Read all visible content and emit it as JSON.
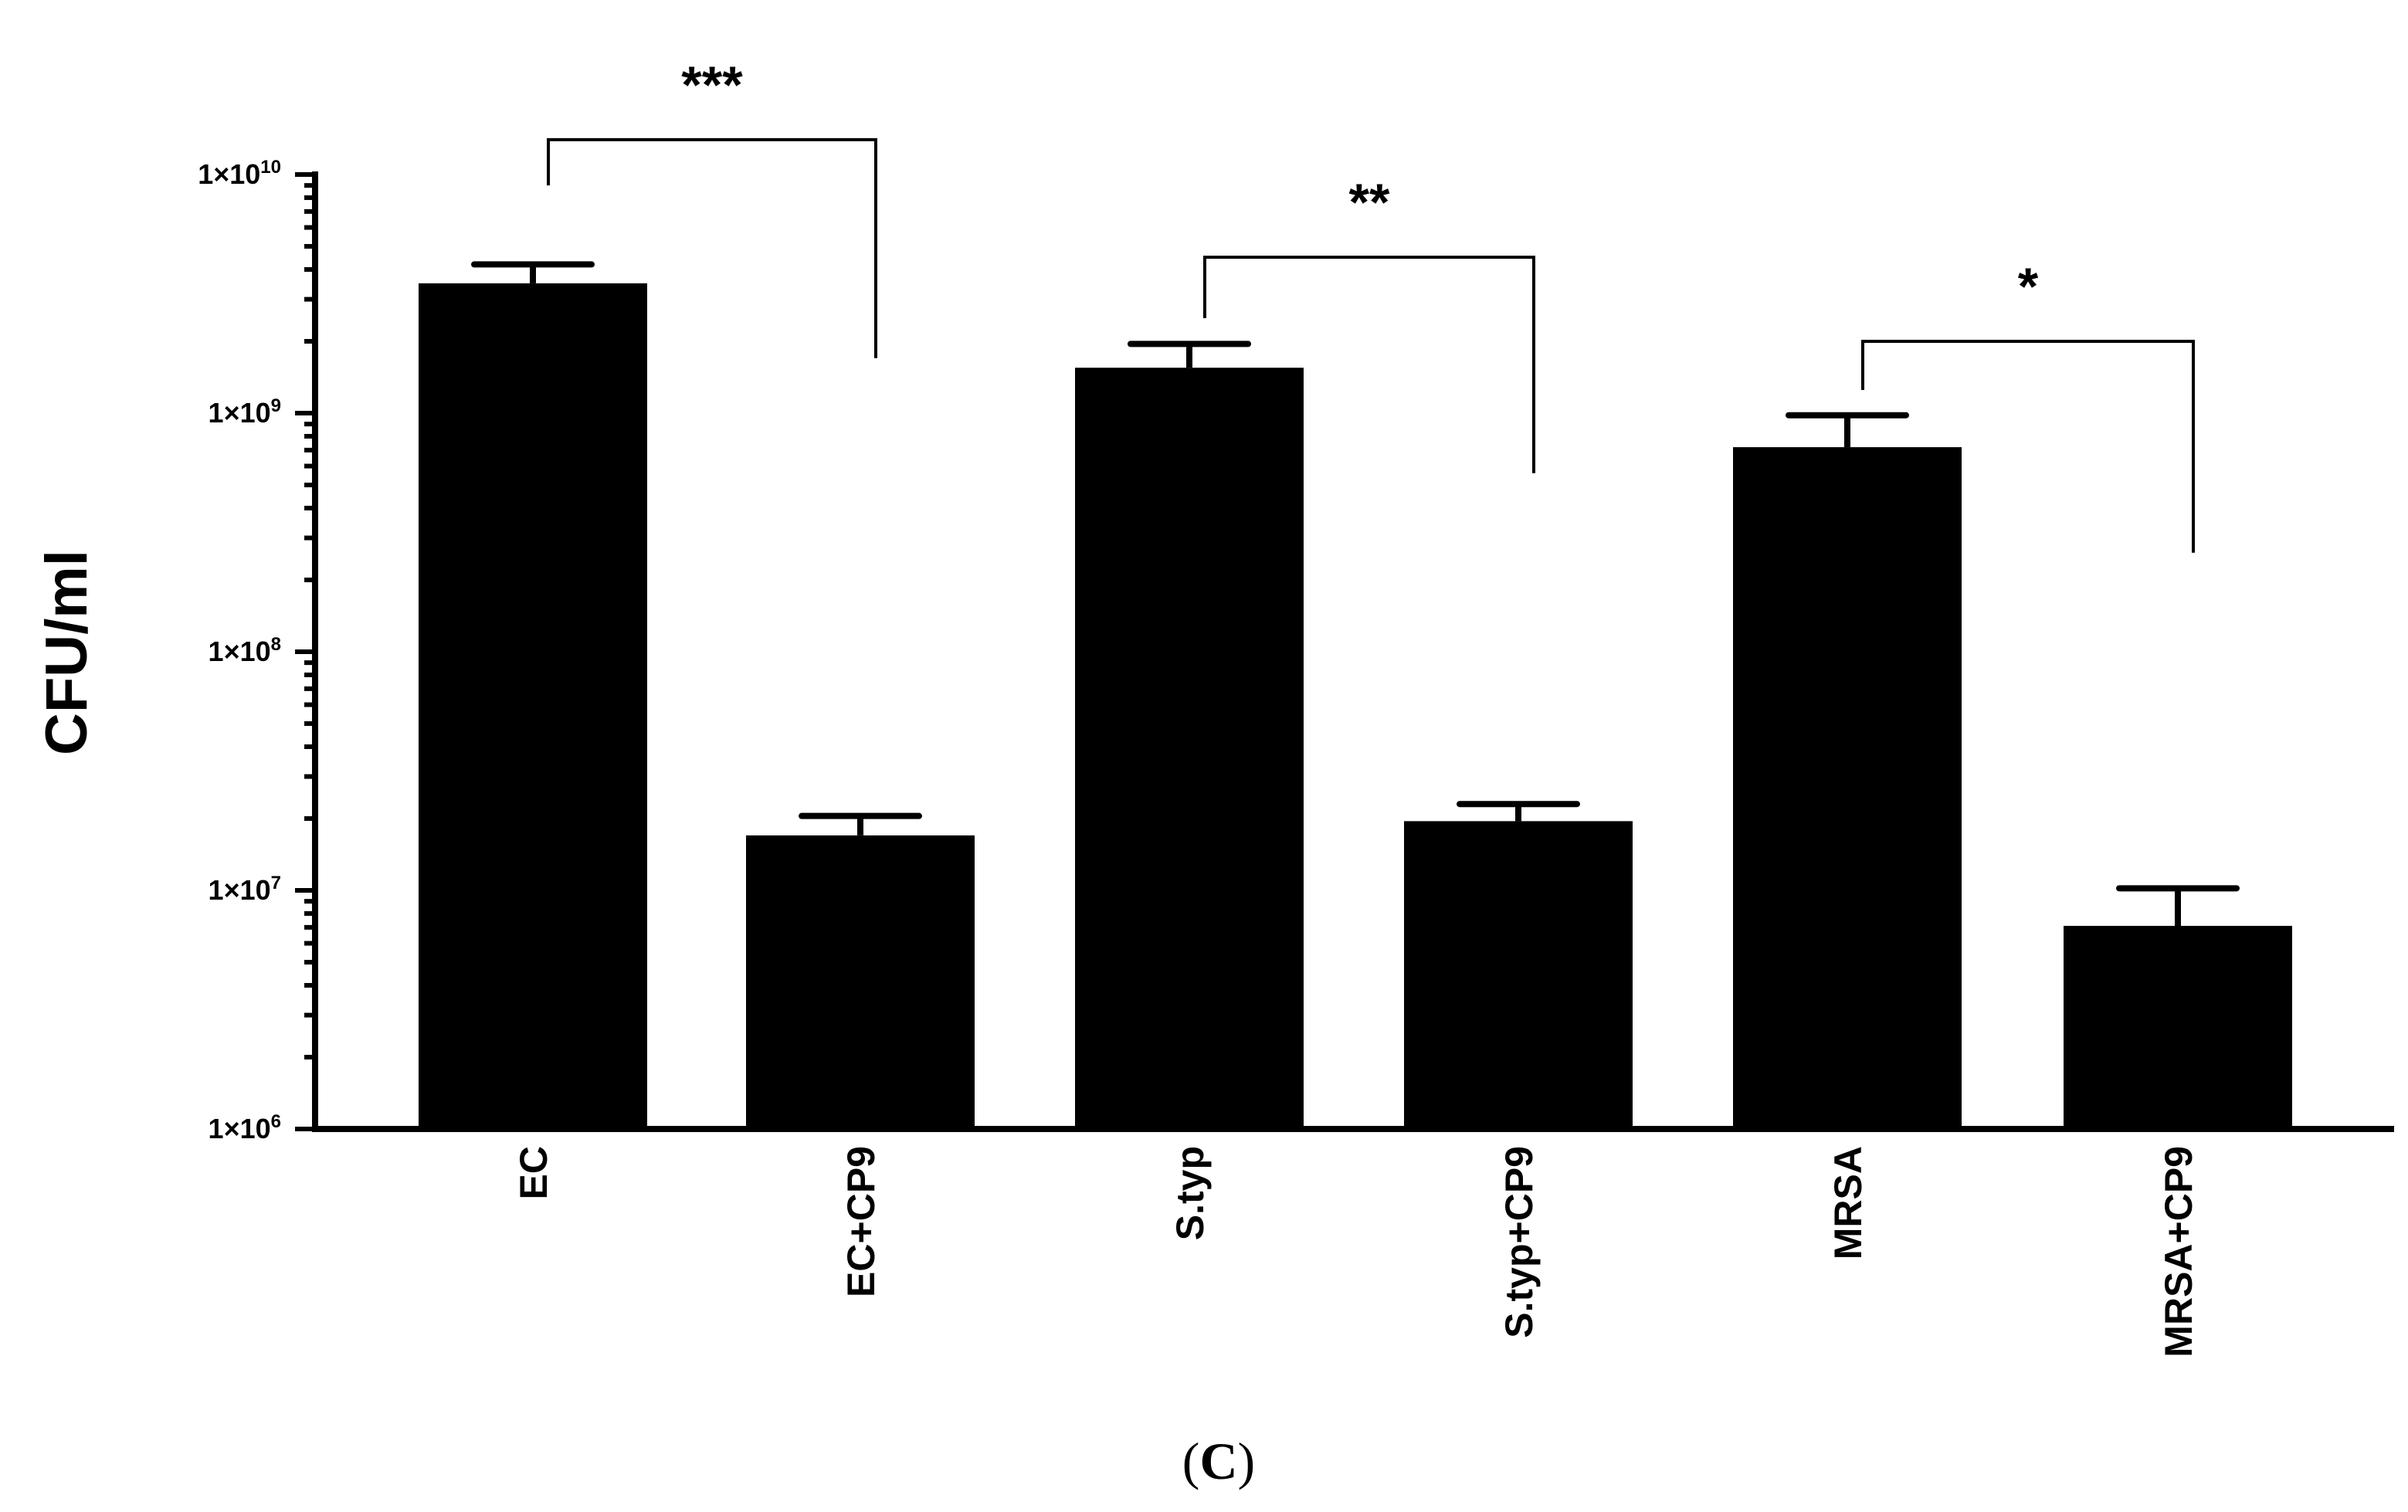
{
  "chart_data": {
    "type": "bar",
    "ylabel": "CFU/ml",
    "yscale": "log",
    "ylim": [
      1000000,
      10000000000
    ],
    "yticks": [
      {
        "value": 1000000,
        "base": "1×10",
        "exp": "6"
      },
      {
        "value": 10000000,
        "base": "1×10",
        "exp": "7"
      },
      {
        "value": 100000000,
        "base": "1×10",
        "exp": "8"
      },
      {
        "value": 1000000000,
        "base": "1×10",
        "exp": "9"
      },
      {
        "value": 10000000000,
        "base": "1×10",
        "exp": "10"
      }
    ],
    "categories": [
      "EC",
      "EC+CP9",
      "S.typ",
      "S.typ+CP9",
      "MRSA",
      "MRSA+CP9"
    ],
    "values": [
      3500000000,
      17000000,
      1550000000,
      19500000,
      720000000,
      7100000
    ],
    "error_upper": [
      4200000000,
      20500000,
      1950000000,
      23000000,
      980000000,
      10200000
    ],
    "bar_color": "#000000",
    "grid": false,
    "significance": [
      {
        "from": 0,
        "to": 1,
        "label": "***",
        "ystart_value": 9000000000,
        "yend_value": 1700000000,
        "yline_value": 14000000000
      },
      {
        "from": 2,
        "to": 3,
        "label": "**",
        "ystart_value": 2500000000,
        "yend_value": 560000000,
        "yline_value": 4500000000
      },
      {
        "from": 4,
        "to": 5,
        "label": "*",
        "ystart_value": 1250000000,
        "yend_value": 260000000,
        "yline_value": 2000000000
      }
    ]
  },
  "panel_label": {
    "open": "(",
    "letter": "C",
    "close": ")"
  }
}
